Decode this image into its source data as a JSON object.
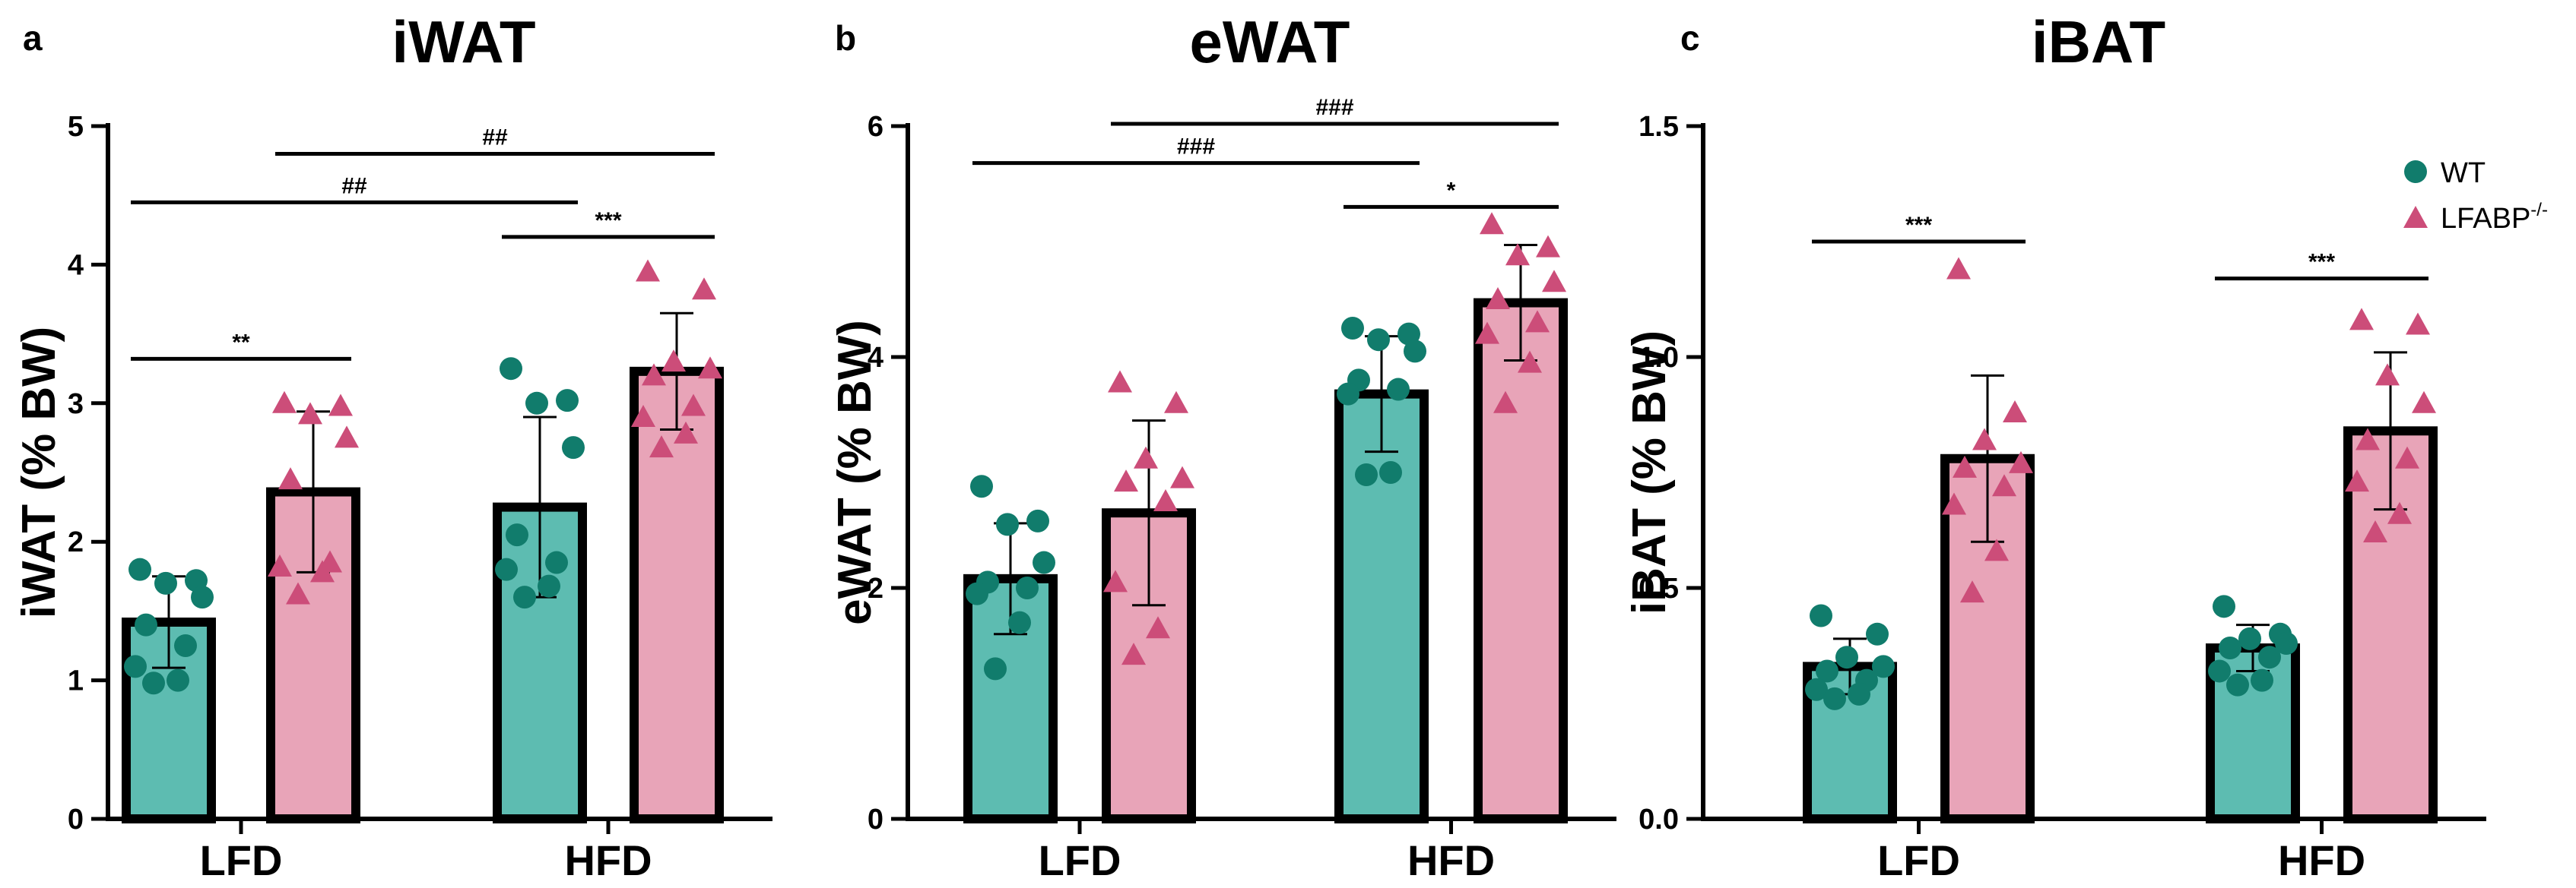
{
  "colors": {
    "wt": "#5dbcb1",
    "wt_point": "#117c6c",
    "ko": "#e8a4b8",
    "ko_point": "#cc4d79"
  },
  "legend": {
    "wt": "WT",
    "ko": "LFABP",
    "ko_sup": "-/-"
  },
  "chart_data": [
    {
      "panel": "a",
      "type": "bar",
      "title": "iWAT",
      "ylabel": "iWAT (% BW)",
      "categories": [
        "LFD",
        "HFD"
      ],
      "ylim": [
        0,
        5
      ],
      "yticks": [
        "0",
        "1",
        "2",
        "3",
        "4",
        "5"
      ],
      "series": [
        {
          "name": "WT",
          "values": [
            1.42,
            2.25
          ],
          "errors": [
            0.33,
            0.65
          ],
          "points": [
            [
              1.8,
              1.72,
              1.7,
              1.6,
              1.4,
              1.25,
              1.1,
              1.0,
              0.98
            ],
            [
              3.25,
              3.02,
              3.0,
              2.68,
              2.05,
              1.85,
              1.8,
              1.68,
              1.6
            ]
          ]
        },
        {
          "name": "LFABP-/-",
          "values": [
            2.36,
            3.23
          ],
          "errors": [
            0.58,
            0.42
          ],
          "points": [
            [
              3.0,
              2.98,
              2.92,
              2.75,
              2.45,
              1.85,
              1.82,
              1.78,
              1.62
            ],
            [
              3.95,
              3.82,
              3.3,
              3.25,
              3.2,
              2.98,
              2.9,
              2.78,
              2.68
            ]
          ]
        }
      ],
      "significance": [
        {
          "label": "**",
          "from": "LFD.WT",
          "to": "LFD.LFABP-/-",
          "y": 3.32
        },
        {
          "label": "##",
          "from": "LFD.WT",
          "to": "HFD.WT",
          "y": 4.45
        },
        {
          "label": "***",
          "from": "HFD.WT",
          "to": "HFD.LFABP-/-",
          "y": 4.2
        },
        {
          "label": "##",
          "from": "LFD.LFABP-/-",
          "to": "HFD.LFABP-/-",
          "y": 4.8
        }
      ]
    },
    {
      "panel": "b",
      "type": "bar",
      "title": "eWAT",
      "ylabel": "eWAT (% BW)",
      "categories": [
        "LFD",
        "HFD"
      ],
      "ylim": [
        0,
        6
      ],
      "yticks": [
        "0",
        "2",
        "4",
        "6"
      ],
      "series": [
        {
          "name": "WT",
          "values": [
            2.08,
            3.68
          ],
          "errors": [
            0.48,
            0.5
          ],
          "points": [
            [
              2.88,
              2.58,
              2.55,
              2.22,
              2.05,
              2.0,
              1.95,
              1.7,
              1.3
            ],
            [
              4.25,
              4.2,
              4.15,
              4.05,
              3.8,
              3.72,
              3.68,
              3.0,
              2.98
            ]
          ]
        },
        {
          "name": "LFABP-/-",
          "values": [
            2.65,
            4.47
          ],
          "errors": [
            0.8,
            0.5
          ],
          "points": [
            [
              3.78,
              3.6,
              3.12,
              2.95,
              2.92,
              2.75,
              2.05,
              1.65,
              1.42
            ],
            [
              5.15,
              4.95,
              4.88,
              4.65,
              4.5,
              4.3,
              4.2,
              3.95,
              3.6
            ]
          ]
        }
      ],
      "significance": [
        {
          "label": "*",
          "from": "HFD.WT",
          "to": "HFD.LFABP-/-",
          "y": 5.3
        },
        {
          "label": "###",
          "from": "LFD.WT",
          "to": "HFD.WT",
          "y": 5.68
        },
        {
          "label": "###",
          "from": "LFD.LFABP-/-",
          "to": "HFD.LFABP-/-",
          "y": 6.02
        }
      ]
    },
    {
      "panel": "c",
      "type": "bar",
      "title": "iBAT",
      "ylabel": "iBAT (% BW)",
      "categories": [
        "LFD",
        "HFD"
      ],
      "ylim": [
        0,
        1.5
      ],
      "yticks": [
        "0.0",
        "0.5",
        "1.0",
        "1.5"
      ],
      "series": [
        {
          "name": "WT",
          "values": [
            0.33,
            0.37
          ],
          "errors": [
            0.06,
            0.05
          ],
          "points": [
            [
              0.44,
              0.4,
              0.35,
              0.33,
              0.32,
              0.3,
              0.28,
              0.27,
              0.26
            ],
            [
              0.46,
              0.4,
              0.39,
              0.38,
              0.37,
              0.35,
              0.32,
              0.3,
              0.29
            ]
          ]
        },
        {
          "name": "LFABP-/-",
          "values": [
            0.78,
            0.84
          ],
          "errors": [
            0.18,
            0.17
          ],
          "points": [
            [
              1.19,
              0.88,
              0.82,
              0.77,
              0.76,
              0.72,
              0.68,
              0.58,
              0.49
            ],
            [
              1.08,
              1.07,
              0.96,
              0.9,
              0.82,
              0.78,
              0.73,
              0.66,
              0.62
            ]
          ]
        }
      ],
      "significance": [
        {
          "label": "***",
          "from": "LFD.WT",
          "to": "LFD.LFABP-/-",
          "y": 1.25
        },
        {
          "label": "***",
          "from": "HFD.WT",
          "to": "HFD.LFABP-/-",
          "y": 1.17
        }
      ]
    }
  ]
}
